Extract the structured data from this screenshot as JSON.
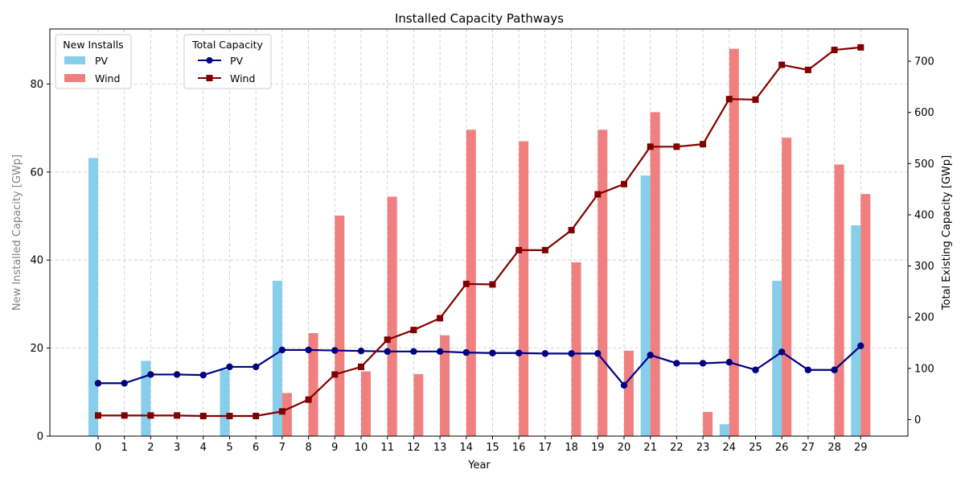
{
  "chart_data": {
    "type": "bar",
    "title": "Installed Capacity Pathways",
    "xlabel": "Year",
    "ylabel_left": "New Installed Capacity [GWp]",
    "ylabel_right": "Total Existing Capacity [GWp]",
    "categories": [
      0,
      1,
      2,
      3,
      4,
      5,
      6,
      7,
      8,
      9,
      10,
      11,
      12,
      13,
      14,
      15,
      16,
      17,
      18,
      19,
      20,
      21,
      22,
      23,
      24,
      25,
      26,
      27,
      28,
      29
    ],
    "ylim_left": [
      0,
      92.5
    ],
    "ylim_right": [
      -32.3,
      763
    ],
    "yticks_left": [
      0,
      20,
      40,
      60,
      80
    ],
    "yticks_right": [
      0,
      100,
      200,
      300,
      400,
      500,
      600,
      700
    ],
    "grid": true,
    "bars": [
      {
        "name": "PV",
        "color": "#87ceeb",
        "values": [
          63.2,
          0,
          17.1,
          0,
          0,
          15.0,
          0,
          35.3,
          0,
          0,
          0,
          0,
          0,
          0,
          0,
          0,
          0,
          0,
          0,
          0,
          0,
          59.2,
          0,
          0,
          2.7,
          0,
          35.3,
          0,
          0,
          47.9
        ]
      },
      {
        "name": "Wind",
        "color": "#f08080",
        "values": [
          0,
          0,
          0,
          0,
          0,
          0,
          0,
          9.8,
          23.4,
          50.1,
          14.7,
          54.4,
          14.1,
          22.9,
          69.6,
          0,
          67.0,
          0,
          39.5,
          69.6,
          19.4,
          73.6,
          0,
          5.5,
          88.0,
          0,
          67.8,
          0,
          61.7,
          55.0
        ]
      }
    ],
    "lines": [
      {
        "name": "PV",
        "color": "#000080",
        "marker": "circle",
        "values": [
          71,
          71,
          88,
          88,
          87,
          103,
          103,
          136,
          136,
          135,
          134,
          133,
          133,
          133,
          131,
          130,
          130,
          129,
          129,
          129,
          67,
          126,
          110,
          110,
          112,
          97,
          132,
          97,
          97,
          144
        ]
      },
      {
        "name": "Wind",
        "color": "#800000",
        "marker": "square",
        "values": [
          8,
          8,
          8,
          8,
          7,
          7,
          7,
          16,
          39,
          88,
          103,
          156,
          175,
          198,
          265,
          264,
          331,
          331,
          370,
          440,
          460,
          533,
          533,
          538,
          626,
          625,
          693,
          683,
          722,
          727
        ]
      }
    ],
    "legend_bars": {
      "title": "New Installs",
      "position": "top-left"
    },
    "legend_lines": {
      "title": "Total Capacity",
      "position": "top-left"
    }
  }
}
